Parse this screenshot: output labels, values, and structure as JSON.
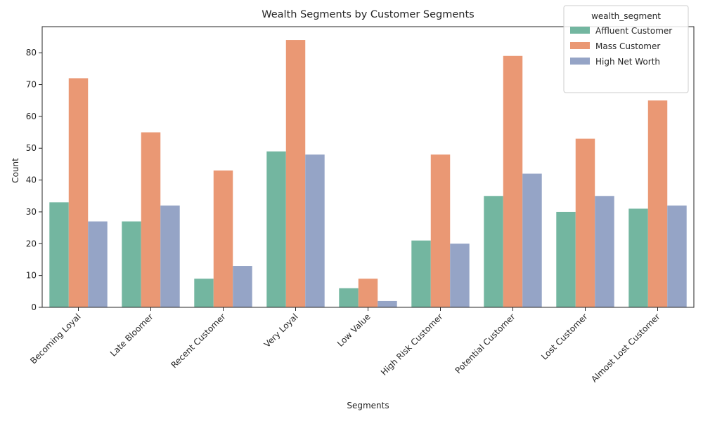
{
  "chart_data": {
    "type": "bar",
    "title": "Wealth Segments by Customer Segments",
    "xlabel": "Segments",
    "ylabel": "Count",
    "categories": [
      "Becoming Loyal",
      "Late Bloomer",
      "Recent Customer",
      "Very Loyal",
      "Low Value",
      "High Risk Customer",
      "Potential Customer",
      "Lost Customer",
      "Almost Lost Customer"
    ],
    "series": [
      {
        "name": "Affluent Customer",
        "color": "#73b6a0",
        "values": [
          33,
          27,
          9,
          49,
          6,
          21,
          35,
          30,
          31
        ]
      },
      {
        "name": "Mass Customer",
        "color": "#ea9874",
        "values": [
          72,
          55,
          43,
          84,
          9,
          48,
          79,
          53,
          65
        ]
      },
      {
        "name": "High Net Worth",
        "color": "#95a4c6",
        "values": [
          27,
          32,
          13,
          48,
          2,
          20,
          42,
          35,
          32
        ]
      }
    ],
    "legend_title": "wealth_segment",
    "legend_position": "top-right",
    "ylim": [
      0,
      88.2
    ],
    "yticks": [
      0,
      10,
      20,
      30,
      40,
      50,
      60,
      70,
      80
    ],
    "grid": false
  }
}
